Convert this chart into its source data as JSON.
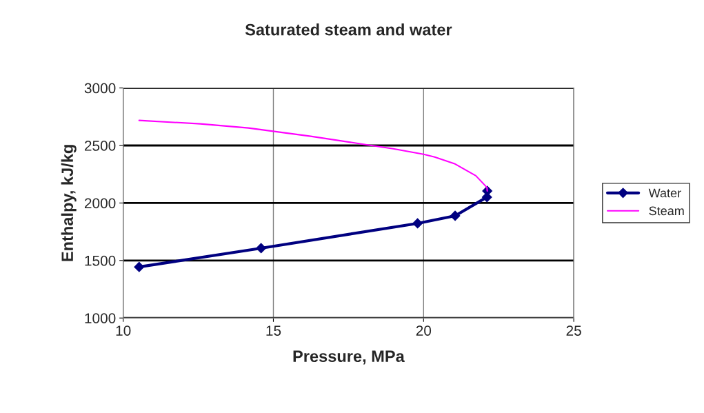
{
  "chart_data": {
    "type": "line",
    "title": "Saturated steam and water",
    "xlabel": "Pressure, MPa",
    "ylabel": "Enthalpy, kJ/kg",
    "series": [
      {
        "name": "Water",
        "color": "#000080",
        "marker": "diamond",
        "x": [
          10.53,
          14.59,
          19.8,
          21.05,
          22.11,
          22.12
        ],
        "values": [
          1444,
          1607,
          1823,
          1889,
          2051,
          2105
        ]
      },
      {
        "name": "Steam",
        "color": "#ff00ff",
        "marker": "none",
        "x": [
          10.53,
          12.57,
          14.17,
          16.24,
          18.07,
          18.99,
          20.0,
          20.37,
          21.05,
          21.74,
          22.11,
          22.12
        ],
        "values": [
          2718,
          2688,
          2652,
          2580,
          2508,
          2472,
          2423,
          2399,
          2339,
          2237,
          2135,
          2105
        ]
      }
    ],
    "xlim": [
      10,
      25
    ],
    "xticks": [
      10,
      15,
      20,
      25
    ],
    "ylim": [
      1000,
      3000
    ],
    "yticks": [
      1000,
      1500,
      2000,
      2500,
      3000
    ],
    "grid": true,
    "legend": "right"
  }
}
